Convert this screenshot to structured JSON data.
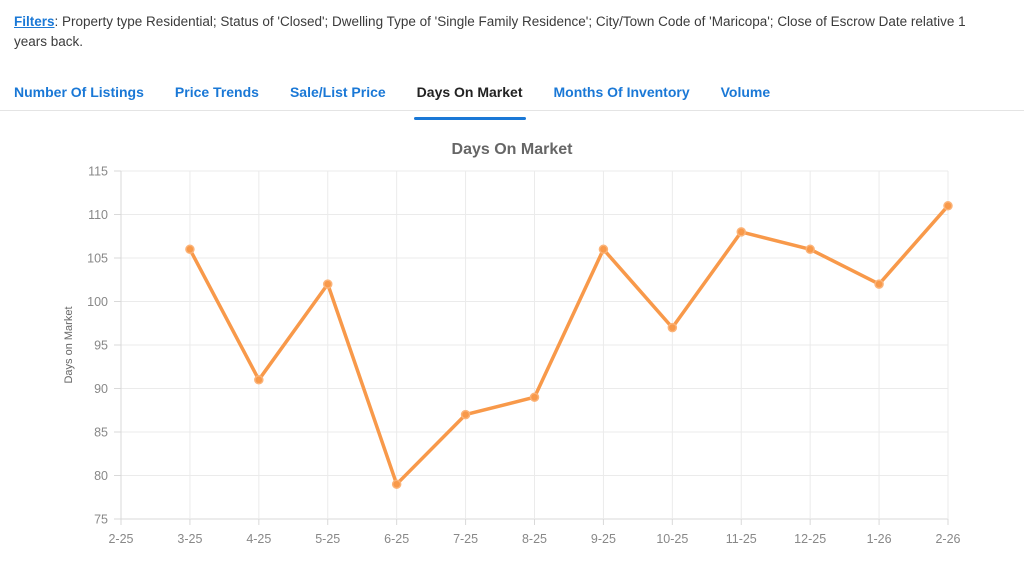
{
  "filters": {
    "label": "Filters",
    "description": ": Property type Residential; Status of 'Closed'; Dwelling Type of 'Single Family Residence'; City/Town Code of 'Maricopa'; Close of Escrow Date relative 1 years back."
  },
  "tabs": [
    {
      "label": "Number Of Listings",
      "active": false
    },
    {
      "label": "Price Trends",
      "active": false
    },
    {
      "label": "Sale/List Price",
      "active": false
    },
    {
      "label": "Days On Market",
      "active": true
    },
    {
      "label": "Months Of Inventory",
      "active": false
    },
    {
      "label": "Volume",
      "active": false
    }
  ],
  "colors": {
    "accent_blue": "#1a78d6",
    "line_orange": "#f8994a",
    "marker_stroke": "#fbb378",
    "grid": "#ebebeb",
    "axis_line": "#d9d9d9",
    "axis_text": "#888888",
    "title_text": "#666666",
    "body_text": "#3b3b3b"
  },
  "chart_data": {
    "type": "line",
    "title": "Days On Market",
    "xlabel": "",
    "ylabel": "Days on Market",
    "categories": [
      "2-25",
      "3-25",
      "4-25",
      "5-25",
      "6-25",
      "7-25",
      "8-25",
      "9-25",
      "10-25",
      "11-25",
      "12-25",
      "1-26",
      "2-26"
    ],
    "values": [
      null,
      106,
      91,
      102,
      79,
      87,
      89,
      106,
      97,
      108,
      106,
      102,
      111
    ],
    "ylim": [
      75,
      115
    ],
    "ytick_step": 5,
    "grid": true,
    "legend": "none"
  }
}
